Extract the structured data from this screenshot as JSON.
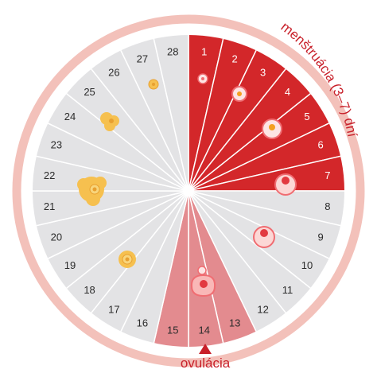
{
  "cycle": {
    "days": [
      "1",
      "2",
      "3",
      "4",
      "5",
      "6",
      "7",
      "8",
      "9",
      "10",
      "11",
      "12",
      "13",
      "14",
      "15",
      "16",
      "17",
      "18",
      "19",
      "20",
      "21",
      "22",
      "23",
      "24",
      "25",
      "26",
      "27",
      "28"
    ],
    "menstruation_days": [
      1,
      2,
      3,
      4,
      5,
      6,
      7
    ],
    "ovulation_days": [
      13,
      14,
      15
    ]
  },
  "labels": {
    "menstruation": "menštruácia (3–7) dní",
    "ovulation": "ovulácia"
  },
  "colors": {
    "menstruation": "#d3272a",
    "ovulation": "#e38b8f",
    "regular": "#e3e3e5",
    "outer_ring": "#f3c1ba",
    "follicle": "#f6c04f",
    "follicle_core": "#e8a030",
    "egg": "#f06d72",
    "label": "#c8202a"
  },
  "icons": {
    "egg": "egg-cell-icon",
    "corpus": "corpus-luteum-icon",
    "arrow": "cycle-direction-arrow-icon",
    "marker": "ovulation-marker-icon"
  }
}
